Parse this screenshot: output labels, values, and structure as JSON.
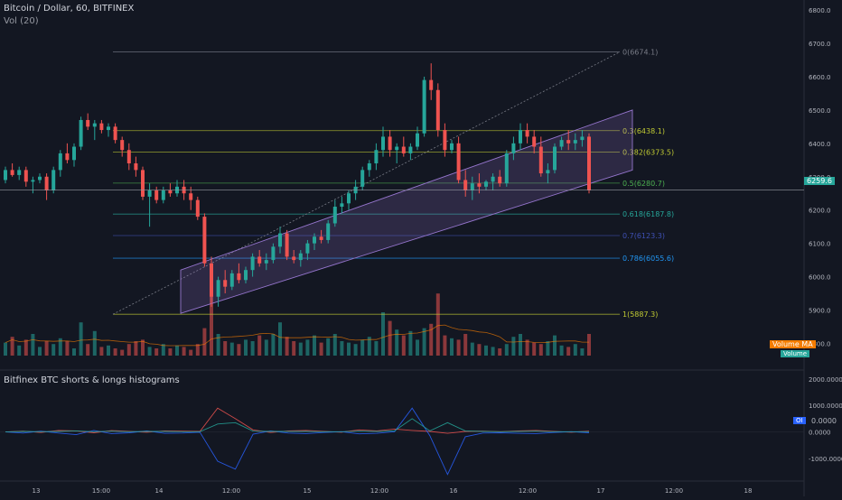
{
  "header": {
    "symbol_line": "Bitcoin / Dollar, 60, BITFINEX",
    "volume_line": "Vol (20)",
    "indicator_line": "Bitfinex BTC shorts & longs histograms"
  },
  "colors": {
    "background": "#131722",
    "bull": "#26a69a",
    "bear": "#ef5350",
    "fib_0": "#787b86",
    "fib_03": "#c0ca33",
    "fib_0382": "#c0ca33",
    "fib_05": "#4caf50",
    "fib_0618": "#26a69a",
    "fib_07": "#3f51b5",
    "fib_0786": "#2196f3",
    "fib_1": "#c0ca33",
    "channel": "#9575cd",
    "price_tag": "#26a69a",
    "volume_ma_tag": "#f57c00"
  },
  "chart_data": [
    {
      "type": "candlestick",
      "title": "Bitcoin / Dollar, 60, BITFINEX",
      "y_axis_side": "right",
      "ylim": [
        5720,
        6830
      ],
      "y_ticks": [
        "6800.0",
        "6700.0",
        "6600.0",
        "6500.0",
        "6400.0",
        "6300.0",
        "6200.0",
        "6100.0",
        "6000.0",
        "5900.0",
        "5800.0"
      ],
      "x_ticks": [
        "13",
        "15:00",
        "14",
        "12:00",
        "15",
        "12:00",
        "16",
        "12:00",
        "17",
        "12:00",
        "18"
      ],
      "last_price": "6259.6",
      "ohlc": [
        [
          6290,
          6330,
          6280,
          6320
        ],
        [
          6320,
          6340,
          6300,
          6305
        ],
        [
          6305,
          6330,
          6290,
          6320
        ],
        [
          6320,
          6330,
          6270,
          6285
        ],
        [
          6285,
          6300,
          6250,
          6290
        ],
        [
          6290,
          6310,
          6280,
          6300
        ],
        [
          6300,
          6310,
          6230,
          6260
        ],
        [
          6260,
          6330,
          6250,
          6320
        ],
        [
          6320,
          6380,
          6300,
          6370
        ],
        [
          6370,
          6400,
          6340,
          6350
        ],
        [
          6350,
          6400,
          6330,
          6390
        ],
        [
          6390,
          6480,
          6380,
          6470
        ],
        [
          6470,
          6490,
          6440,
          6450
        ],
        [
          6450,
          6470,
          6410,
          6460
        ],
        [
          6460,
          6470,
          6430,
          6440
        ],
        [
          6440,
          6460,
          6420,
          6450
        ],
        [
          6450,
          6460,
          6400,
          6410
        ],
        [
          6410,
          6420,
          6360,
          6380
        ],
        [
          6380,
          6400,
          6320,
          6340
        ],
        [
          6340,
          6360,
          6300,
          6320
        ],
        [
          6320,
          6330,
          6230,
          6240
        ],
        [
          6240,
          6280,
          6150,
          6260
        ],
        [
          6260,
          6270,
          6220,
          6230
        ],
        [
          6230,
          6270,
          6220,
          6260
        ],
        [
          6260,
          6280,
          6240,
          6250
        ],
        [
          6250,
          6290,
          6240,
          6270
        ],
        [
          6270,
          6290,
          6230,
          6250
        ],
        [
          6250,
          6270,
          6200,
          6230
        ],
        [
          6230,
          6240,
          6170,
          6180
        ],
        [
          6180,
          6190,
          6030,
          6040
        ],
        [
          6040,
          6060,
          5910,
          5940
        ],
        [
          5940,
          6000,
          5910,
          5990
        ],
        [
          5990,
          6020,
          5950,
          5970
        ],
        [
          5970,
          6020,
          5960,
          6010
        ],
        [
          6010,
          6040,
          5980,
          5990
        ],
        [
          5990,
          6030,
          5980,
          6020
        ],
        [
          6020,
          6070,
          6000,
          6060
        ],
        [
          6060,
          6080,
          6030,
          6040
        ],
        [
          6040,
          6070,
          6020,
          6050
        ],
        [
          6050,
          6100,
          6040,
          6090
        ],
        [
          6090,
          6150,
          6070,
          6130
        ],
        [
          6130,
          6140,
          6050,
          6060
        ],
        [
          6060,
          6080,
          6040,
          6050
        ],
        [
          6050,
          6080,
          6030,
          6070
        ],
        [
          6070,
          6110,
          6050,
          6100
        ],
        [
          6100,
          6130,
          6080,
          6120
        ],
        [
          6120,
          6140,
          6100,
          6110
        ],
        [
          6110,
          6170,
          6100,
          6160
        ],
        [
          6160,
          6230,
          6150,
          6210
        ],
        [
          6210,
          6240,
          6190,
          6220
        ],
        [
          6220,
          6260,
          6200,
          6250
        ],
        [
          6250,
          6290,
          6230,
          6270
        ],
        [
          6270,
          6330,
          6260,
          6320
        ],
        [
          6320,
          6350,
          6300,
          6340
        ],
        [
          6340,
          6400,
          6320,
          6380
        ],
        [
          6380,
          6450,
          6360,
          6420
        ],
        [
          6420,
          6440,
          6360,
          6380
        ],
        [
          6380,
          6400,
          6340,
          6390
        ],
        [
          6390,
          6420,
          6360,
          6370
        ],
        [
          6370,
          6400,
          6350,
          6390
        ],
        [
          6390,
          6450,
          6380,
          6430
        ],
        [
          6430,
          6600,
          6420,
          6590
        ],
        [
          6590,
          6640,
          6530,
          6560
        ],
        [
          6560,
          6580,
          6420,
          6440
        ],
        [
          6440,
          6460,
          6360,
          6380
        ],
        [
          6380,
          6410,
          6370,
          6400
        ],
        [
          6400,
          6420,
          6280,
          6290
        ],
        [
          6290,
          6320,
          6240,
          6260
        ],
        [
          6260,
          6300,
          6230,
          6280
        ],
        [
          6280,
          6310,
          6250,
          6270
        ],
        [
          6270,
          6290,
          6260,
          6285
        ],
        [
          6285,
          6310,
          6260,
          6300
        ],
        [
          6300,
          6320,
          6270,
          6280
        ],
        [
          6280,
          6380,
          6270,
          6370
        ],
        [
          6370,
          6420,
          6350,
          6400
        ],
        [
          6400,
          6460,
          6380,
          6440
        ],
        [
          6440,
          6460,
          6400,
          6420
        ],
        [
          6420,
          6440,
          6370,
          6390
        ],
        [
          6390,
          6420,
          6300,
          6310
        ],
        [
          6310,
          6340,
          6280,
          6320
        ],
        [
          6320,
          6400,
          6310,
          6390
        ],
        [
          6390,
          6420,
          6380,
          6410
        ],
        [
          6410,
          6440,
          6380,
          6400
        ],
        [
          6400,
          6430,
          6380,
          6410
        ],
        [
          6410,
          6440,
          6390,
          6420
        ],
        [
          6420,
          6430,
          6250,
          6260
        ]
      ],
      "volume": [
        0.18,
        0.26,
        0.14,
        0.22,
        0.3,
        0.12,
        0.2,
        0.16,
        0.24,
        0.2,
        0.1,
        0.46,
        0.16,
        0.34,
        0.12,
        0.14,
        0.1,
        0.08,
        0.16,
        0.2,
        0.22,
        0.12,
        0.1,
        0.16,
        0.1,
        0.14,
        0.12,
        0.08,
        0.16,
        0.38,
        0.94,
        0.3,
        0.2,
        0.18,
        0.16,
        0.22,
        0.2,
        0.28,
        0.22,
        0.3,
        0.46,
        0.26,
        0.2,
        0.18,
        0.22,
        0.28,
        0.18,
        0.24,
        0.3,
        0.2,
        0.18,
        0.16,
        0.22,
        0.26,
        0.2,
        0.6,
        0.48,
        0.36,
        0.28,
        0.34,
        0.22,
        0.38,
        0.44,
        0.86,
        0.28,
        0.24,
        0.22,
        0.3,
        0.18,
        0.16,
        0.14,
        0.12,
        0.1,
        0.16,
        0.26,
        0.3,
        0.22,
        0.18,
        0.16,
        0.2,
        0.28,
        0.14,
        0.12,
        0.16,
        0.1,
        0.3
      ],
      "volume_ma_label": "Volume MA",
      "volume_label": "Volume",
      "fib_levels": [
        {
          "ratio": 0,
          "price": 6674.1,
          "label": "0(6674.1)"
        },
        {
          "ratio": 0.3,
          "price": 6438.1,
          "label": "0.3(6438.1)"
        },
        {
          "ratio": 0.382,
          "price": 6373.5,
          "label": "0.382(6373.5)"
        },
        {
          "ratio": 0.5,
          "price": 6280.7,
          "label": "0.5(6280.7)"
        },
        {
          "ratio": 0.618,
          "price": 6187.8,
          "label": "0.618(6187.8)"
        },
        {
          "ratio": 0.7,
          "price": 6123.3,
          "label": "0.7(6123.3)"
        },
        {
          "ratio": 0.786,
          "price": 6055.6,
          "label": "0.786(6055.6)"
        },
        {
          "ratio": 1,
          "price": 5887.3,
          "label": "1(5887.3)"
        }
      ],
      "trend_line": {
        "from_price": 5887.3,
        "to_price": 6674.1
      },
      "channel": {
        "lower_start": 5890,
        "lower_end": 6320,
        "upper_start": 6020,
        "upper_end": 6500
      }
    },
    {
      "type": "line",
      "title": "Bitfinex BTC shorts & longs histograms",
      "y_axis_side": "right",
      "ylim": [
        -1850,
        2300
      ],
      "y_ticks": [
        "2000.0000",
        "1000.0000",
        "0.0000",
        "-1000.0000"
      ],
      "current_value_label": "0.0000",
      "oi_label": "OI",
      "series": [
        {
          "color": "#ef5350",
          "values": [
            0,
            30,
            -20,
            60,
            40,
            -30,
            50,
            20,
            -10,
            40,
            30,
            20,
            900,
            500,
            80,
            -20,
            40,
            60,
            20,
            -10,
            80,
            40,
            110,
            60,
            20,
            -50,
            20,
            30,
            10,
            40,
            60,
            20,
            -10,
            30
          ]
        },
        {
          "color": "#2962ff",
          "values": [
            0,
            -40,
            30,
            -40,
            -100,
            60,
            -60,
            -30,
            40,
            -50,
            -40,
            -10,
            -1100,
            -1400,
            -80,
            40,
            -40,
            -60,
            -20,
            10,
            -70,
            -50,
            10,
            900,
            -140,
            -1600,
            -180,
            -40,
            -30,
            -50,
            -60,
            -20,
            10,
            -30
          ]
        },
        {
          "color": "#26a69a",
          "values": [
            0,
            20,
            10,
            20,
            40,
            10,
            30,
            10,
            20,
            20,
            10,
            10,
            300,
            350,
            30,
            20,
            20,
            20,
            10,
            10,
            30,
            20,
            40,
            500,
            40,
            350,
            40,
            20,
            10,
            20,
            30,
            10,
            10,
            10
          ]
        }
      ]
    }
  ]
}
